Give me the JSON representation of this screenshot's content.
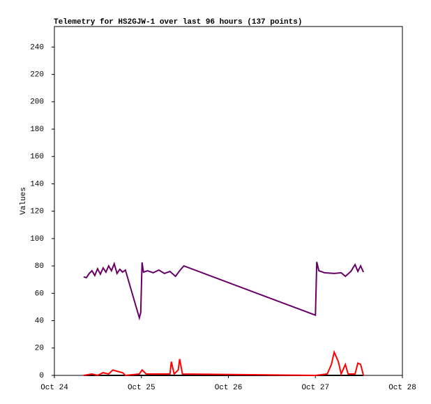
{
  "chart_data": {
    "type": "line",
    "title": "Telemetry for HS2GJW-1 over last 96 hours (137 points)",
    "y_label": "Values",
    "xlim": [
      24,
      28
    ],
    "xticks": [
      {
        "value": 24,
        "label": "Oct 24"
      },
      {
        "value": 25,
        "label": "Oct 25"
      },
      {
        "value": 26,
        "label": "Oct 26"
      },
      {
        "value": 27,
        "label": "Oct 27"
      },
      {
        "value": 28,
        "label": "Oct 28"
      }
    ],
    "ylim": [
      0,
      255
    ],
    "yticks": [
      0,
      20,
      40,
      60,
      80,
      100,
      120,
      140,
      160,
      180,
      200,
      220,
      240
    ],
    "series": [
      {
        "color": "#000000",
        "x": [
          24.336,
          27.552
        ],
        "values": [
          0,
          0
        ]
      },
      {
        "color": "#ff0000",
        "x": [
          24.336,
          24.432,
          24.496,
          24.56,
          24.624,
          24.672,
          24.72,
          24.784,
          24.816,
          24.976,
          25.008,
          25.056,
          25.328,
          25.344,
          25.376,
          25.424,
          25.44,
          25.472,
          27.0,
          27.136,
          27.184,
          27.216,
          27.264,
          27.296,
          27.344,
          27.376,
          27.456,
          27.488,
          27.52,
          27.552
        ],
        "values": [
          0,
          1,
          0,
          2,
          1,
          4,
          3,
          2,
          0,
          1,
          4,
          1,
          1,
          10,
          1,
          4,
          12,
          1,
          0,
          1,
          8,
          17,
          10,
          1,
          8,
          1,
          1,
          9,
          8,
          0
        ]
      },
      {
        "color": "#660066",
        "x": [
          24.336,
          24.368,
          24.4,
          24.432,
          24.464,
          24.496,
          24.528,
          24.56,
          24.592,
          24.624,
          24.656,
          24.688,
          24.72,
          24.752,
          24.784,
          24.816,
          24.976,
          24.992,
          25.008,
          25.024,
          25.072,
          25.136,
          25.2,
          25.264,
          25.328,
          25.392,
          25.44,
          25.488,
          27.0,
          27.016,
          27.04,
          27.104,
          27.216,
          27.296,
          27.344,
          27.408,
          27.456,
          27.488,
          27.52,
          27.552
        ],
        "values": [
          72,
          71.4,
          74.5,
          76.5,
          73,
          78,
          74,
          78.6,
          75.5,
          80,
          76.5,
          81.6,
          74.5,
          77.5,
          75.5,
          77,
          42,
          46,
          82.6,
          75.5,
          76.5,
          75,
          77,
          74.5,
          76,
          72.4,
          76.5,
          80,
          44,
          83,
          76.5,
          75,
          74.5,
          75,
          72.4,
          76,
          81,
          76,
          80,
          75.5
        ]
      }
    ]
  }
}
